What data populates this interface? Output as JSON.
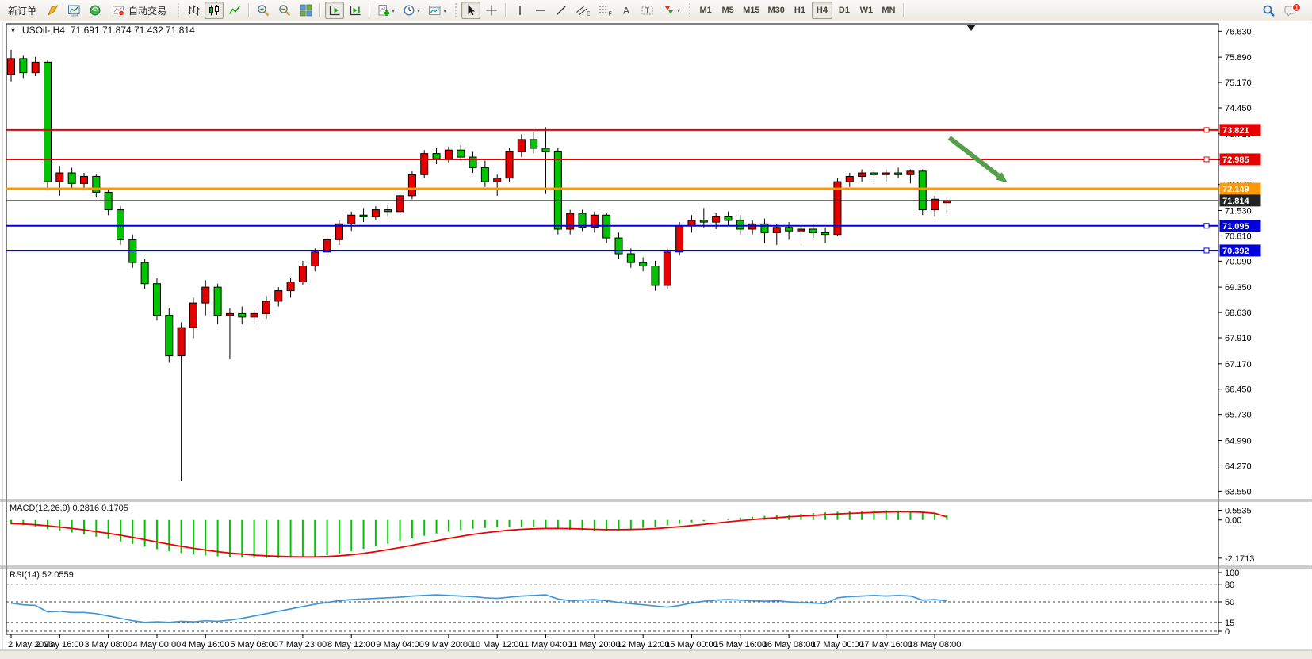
{
  "toolbar": {
    "new_order_label": "新订单",
    "autotrading_label": "自动交易",
    "timeframes": [
      "M1",
      "M5",
      "M15",
      "M30",
      "H1",
      "H4",
      "D1",
      "W1",
      "MN"
    ],
    "active_timeframe": "H4",
    "notification_count": "1"
  },
  "icons": {
    "one_click_toggle": "▼",
    "dropdown_caret": "▾",
    "text_tool": "A",
    "text_label_tool": "T",
    "channel_tool": "E",
    "fibo_tool": "F"
  },
  "chart": {
    "title": "USOil-,H4",
    "ohlc": "71.691 71.874 71.432 71.814",
    "macd_text": "MACD(12,26,9) 0.2816 0.1705",
    "rsi_text": "RSI(14) 52.0559"
  },
  "chart_data": {
    "type": "candlestick",
    "symbol": "USOil-",
    "timeframe": "H4",
    "ohlc_display": {
      "open": "71.691",
      "high": "71.874",
      "low": "71.432",
      "close": "71.814"
    },
    "colors": {
      "bull": "#e60000",
      "bear": "#00c400",
      "wick": "#000000",
      "macd_histogram": "#00c400",
      "macd_signal": "#f00000",
      "rsi_line": "#3e97d8",
      "arrow": "#54a04a",
      "line_red": "#e60000",
      "line_orange": "#ff9800",
      "line_blue": "#0000dd",
      "line_black": "#222222"
    },
    "price_axis": {
      "range": [
        63.4,
        76.75
      ],
      "tick_labels": [
        "76.630",
        "75.890",
        "75.170",
        "74.450",
        "73.710",
        "72.970",
        "72.270",
        "71.530",
        "70.810",
        "70.090",
        "69.350",
        "68.630",
        "67.910",
        "67.170",
        "66.450",
        "65.730",
        "64.990",
        "64.270",
        "63.550"
      ]
    },
    "hlines": [
      {
        "price": 73.821,
        "label": "73.821",
        "color": "#e60000",
        "width": 2,
        "handle": true
      },
      {
        "price": 72.985,
        "label": "72.985",
        "color": "#e60000",
        "width": 2,
        "handle": true
      },
      {
        "price": 72.149,
        "label": "72.149",
        "color": "#ff9800",
        "width": 3,
        "handle": false
      },
      {
        "price": 71.814,
        "label": "71.814",
        "color": "#222222",
        "width": 1,
        "handle": false
      },
      {
        "price": 71.095,
        "label": "71.095",
        "color": "#0000dd",
        "width": 2,
        "handle": true
      },
      {
        "price": 70.392,
        "label": "70.392",
        "color": "#0000dd",
        "width": 2,
        "handle": true
      }
    ],
    "candles": [
      [
        75.4,
        76.1,
        75.2,
        75.85
      ],
      [
        75.85,
        75.95,
        75.3,
        75.45
      ],
      [
        75.45,
        75.9,
        75.35,
        75.75
      ],
      [
        75.75,
        75.8,
        72.1,
        72.35
      ],
      [
        72.35,
        72.8,
        71.95,
        72.6
      ],
      [
        72.6,
        72.75,
        72.15,
        72.3
      ],
      [
        72.3,
        72.6,
        72.1,
        72.5
      ],
      [
        72.5,
        72.55,
        71.9,
        72.05
      ],
      [
        72.05,
        72.15,
        71.4,
        71.55
      ],
      [
        71.55,
        71.65,
        70.55,
        70.7
      ],
      [
        70.7,
        70.85,
        69.9,
        70.05
      ],
      [
        70.05,
        70.15,
        69.3,
        69.45
      ],
      [
        69.45,
        69.6,
        68.4,
        68.55
      ],
      [
        68.55,
        68.75,
        67.2,
        67.4
      ],
      [
        67.4,
        68.35,
        63.85,
        68.2
      ],
      [
        68.2,
        69.05,
        67.9,
        68.9
      ],
      [
        68.9,
        69.55,
        68.55,
        69.35
      ],
      [
        69.35,
        69.45,
        68.3,
        68.55
      ],
      [
        68.55,
        68.75,
        67.3,
        68.6
      ],
      [
        68.6,
        68.8,
        68.3,
        68.5
      ],
      [
        68.5,
        68.7,
        68.3,
        68.6
      ],
      [
        68.6,
        69.1,
        68.45,
        68.95
      ],
      [
        68.95,
        69.35,
        68.8,
        69.25
      ],
      [
        69.25,
        69.6,
        69.05,
        69.5
      ],
      [
        69.5,
        70.1,
        69.4,
        69.95
      ],
      [
        69.95,
        70.45,
        69.8,
        70.35
      ],
      [
        70.35,
        70.8,
        70.2,
        70.7
      ],
      [
        70.7,
        71.25,
        70.55,
        71.15
      ],
      [
        71.15,
        71.5,
        70.95,
        71.4
      ],
      [
        71.4,
        71.6,
        71.2,
        71.35
      ],
      [
        71.35,
        71.65,
        71.25,
        71.55
      ],
      [
        71.55,
        71.7,
        71.35,
        71.5
      ],
      [
        71.5,
        72.05,
        71.4,
        71.95
      ],
      [
        71.95,
        72.65,
        71.85,
        72.55
      ],
      [
        72.55,
        73.25,
        72.45,
        73.15
      ],
      [
        73.15,
        73.3,
        72.85,
        73.0
      ],
      [
        73.0,
        73.35,
        72.9,
        73.25
      ],
      [
        73.25,
        73.4,
        72.95,
        73.05
      ],
      [
        73.05,
        73.2,
        72.6,
        72.75
      ],
      [
        72.75,
        72.95,
        72.2,
        72.35
      ],
      [
        72.35,
        72.55,
        71.95,
        72.45
      ],
      [
        72.45,
        73.3,
        72.35,
        73.2
      ],
      [
        73.2,
        73.7,
        73.05,
        73.55
      ],
      [
        73.55,
        73.75,
        73.15,
        73.3
      ],
      [
        73.3,
        73.9,
        72.0,
        73.2
      ],
      [
        73.2,
        73.3,
        70.85,
        71.0
      ],
      [
        71.0,
        71.55,
        70.85,
        71.45
      ],
      [
        71.45,
        71.55,
        70.95,
        71.05
      ],
      [
        71.05,
        71.5,
        70.9,
        71.4
      ],
      [
        71.4,
        71.45,
        70.6,
        70.75
      ],
      [
        70.75,
        70.9,
        70.15,
        70.3
      ],
      [
        70.3,
        70.45,
        69.9,
        70.05
      ],
      [
        70.05,
        70.2,
        69.8,
        69.95
      ],
      [
        69.95,
        70.1,
        69.25,
        69.4
      ],
      [
        69.4,
        70.45,
        69.3,
        70.35
      ],
      [
        70.35,
        71.2,
        70.25,
        71.1
      ],
      [
        71.1,
        71.4,
        70.9,
        71.25
      ],
      [
        71.25,
        71.6,
        71.05,
        71.2
      ],
      [
        71.2,
        71.45,
        71.0,
        71.35
      ],
      [
        71.35,
        71.5,
        71.1,
        71.25
      ],
      [
        71.25,
        71.4,
        70.85,
        71.0
      ],
      [
        71.0,
        71.25,
        70.85,
        71.15
      ],
      [
        71.15,
        71.3,
        70.6,
        70.9
      ],
      [
        70.9,
        71.15,
        70.55,
        71.05
      ],
      [
        71.05,
        71.2,
        70.7,
        70.95
      ],
      [
        70.95,
        71.1,
        70.65,
        71.0
      ],
      [
        71.0,
        71.15,
        70.75,
        70.9
      ],
      [
        70.9,
        71.05,
        70.6,
        70.85
      ],
      [
        70.85,
        72.45,
        70.8,
        72.35
      ],
      [
        72.35,
        72.6,
        72.2,
        72.5
      ],
      [
        72.5,
        72.7,
        72.35,
        72.6
      ],
      [
        72.6,
        72.75,
        72.4,
        72.55
      ],
      [
        72.55,
        72.7,
        72.35,
        72.6
      ],
      [
        72.6,
        72.75,
        72.45,
        72.55
      ],
      [
        72.55,
        72.7,
        72.3,
        72.65
      ],
      [
        72.65,
        72.7,
        71.4,
        71.55
      ],
      [
        71.55,
        71.95,
        71.35,
        71.85
      ],
      [
        71.75,
        71.874,
        71.432,
        71.814
      ]
    ],
    "time_labels": [
      "2 May 2023",
      "2 May 16:00",
      "3 May 08:00",
      "4 May 00:00",
      "4 May 16:00",
      "5 May 08:00",
      "7 May 23:00",
      "8 May 12:00",
      "9 May 04:00",
      "9 May 20:00",
      "10 May 12:00",
      "11 May 04:00",
      "11 May 20:00",
      "12 May 12:00",
      "15 May 00:00",
      "15 May 16:00",
      "16 May 08:00",
      "17 May 00:00",
      "17 May 16:00",
      "18 May 08:00"
    ],
    "time_label_step": 4,
    "macd": {
      "name": "MACD(12,26,9)",
      "values_display": "0.2816 0.1705",
      "axis_ticks": [
        "0.5535",
        "0.00",
        "-2.1713"
      ],
      "range": [
        -2.45,
        0.8
      ],
      "histogram": [
        -0.25,
        -0.3,
        -0.38,
        -0.52,
        -0.62,
        -0.72,
        -0.82,
        -0.95,
        -1.08,
        -1.22,
        -1.36,
        -1.52,
        -1.66,
        -1.78,
        -1.88,
        -1.96,
        -2.02,
        -2.07,
        -2.11,
        -2.14,
        -2.16,
        -2.17,
        -2.17,
        -2.16,
        -2.13,
        -2.08,
        -2.0,
        -1.9,
        -1.78,
        -1.64,
        -1.5,
        -1.35,
        -1.2,
        -1.05,
        -0.9,
        -0.77,
        -0.66,
        -0.57,
        -0.5,
        -0.45,
        -0.41,
        -0.39,
        -0.39,
        -0.41,
        -0.45,
        -0.5,
        -0.55,
        -0.58,
        -0.6,
        -0.59,
        -0.56,
        -0.51,
        -0.45,
        -0.38,
        -0.3,
        -0.22,
        -0.14,
        -0.07,
        0.0,
        0.07,
        0.13,
        0.18,
        0.23,
        0.27,
        0.31,
        0.35,
        0.39,
        0.43,
        0.47,
        0.5,
        0.52,
        0.54,
        0.553,
        0.54,
        0.51,
        0.45,
        0.36,
        0.2816
      ],
      "signal": [
        -0.2,
        -0.23,
        -0.27,
        -0.33,
        -0.4,
        -0.48,
        -0.56,
        -0.66,
        -0.76,
        -0.87,
        -0.99,
        -1.12,
        -1.25,
        -1.38,
        -1.5,
        -1.61,
        -1.71,
        -1.8,
        -1.88,
        -1.94,
        -2.0,
        -2.04,
        -2.07,
        -2.09,
        -2.1,
        -2.1,
        -2.08,
        -2.04,
        -1.98,
        -1.9,
        -1.8,
        -1.69,
        -1.57,
        -1.44,
        -1.31,
        -1.18,
        -1.05,
        -0.93,
        -0.82,
        -0.73,
        -0.65,
        -0.58,
        -0.53,
        -0.5,
        -0.48,
        -0.48,
        -0.49,
        -0.51,
        -0.53,
        -0.55,
        -0.55,
        -0.54,
        -0.52,
        -0.49,
        -0.44,
        -0.38,
        -0.32,
        -0.25,
        -0.18,
        -0.11,
        -0.04,
        0.02,
        0.08,
        0.13,
        0.18,
        0.22,
        0.26,
        0.3,
        0.34,
        0.37,
        0.4,
        0.43,
        0.45,
        0.46,
        0.46,
        0.44,
        0.38,
        0.1705
      ]
    },
    "rsi": {
      "name": "RSI(14)",
      "value_display": "52.0559",
      "axis_ticks": [
        "100",
        "80",
        "50",
        "15",
        "0"
      ],
      "levels": [
        80,
        50,
        15,
        0
      ],
      "range": [
        0,
        100
      ],
      "values": [
        48,
        45,
        44,
        33,
        34,
        32,
        32,
        30,
        26,
        22,
        18,
        15,
        16,
        15,
        17,
        16,
        18,
        17,
        19,
        22,
        26,
        30,
        34,
        38,
        42,
        46,
        49,
        52,
        54,
        55,
        56,
        57,
        58,
        60,
        61,
        62,
        61,
        60,
        59,
        57,
        56,
        58,
        60,
        61,
        62,
        55,
        52,
        53,
        54,
        52,
        49,
        47,
        45,
        43,
        41,
        44,
        48,
        51,
        53,
        54,
        53,
        52,
        51,
        52,
        50,
        49,
        48,
        47,
        57,
        59,
        60,
        61,
        60,
        61,
        60,
        53,
        54,
        52.0559
      ]
    },
    "annotations": {
      "arrow": {
        "from_bar": 77.2,
        "from_price": 73.6,
        "to_bar": 82.0,
        "to_price": 72.32
      },
      "shift_marker_bar": 79
    }
  }
}
